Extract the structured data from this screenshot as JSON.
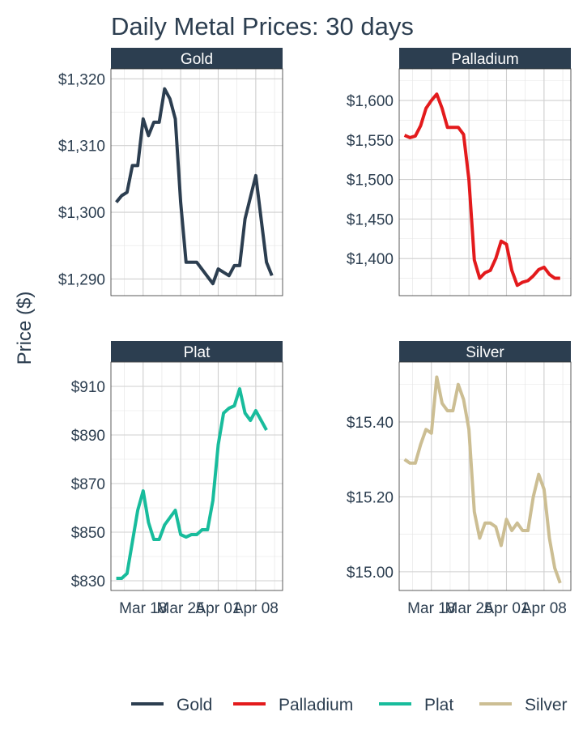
{
  "chart_data": {
    "type": "line",
    "title": "Daily Metal Prices: 30 days",
    "ylabel": "Price ($)",
    "xlabel": "",
    "x_dates": [
      "2019-03-13",
      "2019-03-14",
      "2019-03-15",
      "2019-03-18",
      "2019-03-19",
      "2019-03-20",
      "2019-03-21",
      "2019-03-22",
      "2019-03-25",
      "2019-03-26",
      "2019-03-27",
      "2019-03-28",
      "2019-03-29",
      "2019-04-01",
      "2019-04-02",
      "2019-04-03",
      "2019-04-04",
      "2019-04-05",
      "2019-04-08",
      "2019-04-09",
      "2019-04-10",
      "2019-04-11",
      "2019-04-12"
    ],
    "x_ticks": [
      {
        "date": "2019-03-18",
        "label": "Mar 18"
      },
      {
        "date": "2019-03-25",
        "label": "Mar 25"
      },
      {
        "date": "2019-04-01",
        "label": "Apr 01"
      },
      {
        "date": "2019-04-08",
        "label": "Apr 08"
      }
    ],
    "x_range": [
      "2019-03-12",
      "2019-04-13"
    ],
    "panels": [
      {
        "name": "Gold",
        "color": "#2c3e50",
        "ylim": [
          1287.5,
          1321.5
        ],
        "y_ticks": [
          1290,
          1300,
          1310,
          1320
        ],
        "y_tick_labels": [
          "$1,290",
          "$1,300",
          "$1,310",
          "$1,320"
        ],
        "points": [
          [
            "2019-03-13",
            1301.5
          ],
          [
            "2019-03-14",
            1302.5
          ],
          [
            "2019-03-15",
            1303.0
          ],
          [
            "2019-03-16",
            1307.0
          ],
          [
            "2019-03-17",
            1307.0
          ],
          [
            "2019-03-18",
            1314.0
          ],
          [
            "2019-03-19",
            1311.5
          ],
          [
            "2019-03-20",
            1313.5
          ],
          [
            "2019-03-21",
            1313.5
          ],
          [
            "2019-03-22",
            1318.5
          ],
          [
            "2019-03-23",
            1317.0
          ],
          [
            "2019-03-24",
            1314.0
          ],
          [
            "2019-03-25",
            1301.5
          ],
          [
            "2019-03-26",
            1292.5
          ],
          [
            "2019-03-28",
            1292.5
          ],
          [
            "2019-03-31",
            1289.3
          ],
          [
            "2019-04-01",
            1291.5
          ],
          [
            "2019-04-03",
            1290.5
          ],
          [
            "2019-04-04",
            1292.0
          ],
          [
            "2019-04-05",
            1292.0
          ],
          [
            "2019-04-06",
            1299.0
          ],
          [
            "2019-04-08",
            1305.5
          ],
          [
            "2019-04-10",
            1292.5
          ],
          [
            "2019-04-11",
            1290.5
          ]
        ]
      },
      {
        "name": "Palladium",
        "color": "#e31a1c",
        "ylim": [
          1353,
          1640
        ],
        "y_ticks": [
          1400,
          1450,
          1500,
          1550,
          1600
        ],
        "y_tick_labels": [
          "$1,400",
          "$1,450",
          "$1,500",
          "$1,550",
          "$1,600"
        ],
        "points": [
          [
            "2019-03-13",
            1556
          ],
          [
            "2019-03-14",
            1553
          ],
          [
            "2019-03-15",
            1555
          ],
          [
            "2019-03-16",
            1568
          ],
          [
            "2019-03-17",
            1590
          ],
          [
            "2019-03-18",
            1600
          ],
          [
            "2019-03-19",
            1608
          ],
          [
            "2019-03-20",
            1590
          ],
          [
            "2019-03-21",
            1566
          ],
          [
            "2019-03-22",
            1566
          ],
          [
            "2019-03-23",
            1566
          ],
          [
            "2019-03-24",
            1557
          ],
          [
            "2019-03-25",
            1500
          ],
          [
            "2019-03-26",
            1398
          ],
          [
            "2019-03-27",
            1375
          ],
          [
            "2019-03-28",
            1382
          ],
          [
            "2019-03-29",
            1385
          ],
          [
            "2019-03-30",
            1400
          ],
          [
            "2019-03-31",
            1422
          ],
          [
            "2019-04-01",
            1418
          ],
          [
            "2019-04-02",
            1385
          ],
          [
            "2019-04-03",
            1366
          ],
          [
            "2019-04-04",
            1370
          ],
          [
            "2019-04-05",
            1372
          ],
          [
            "2019-04-06",
            1378
          ],
          [
            "2019-04-07",
            1386
          ],
          [
            "2019-04-08",
            1389
          ],
          [
            "2019-04-09",
            1380
          ],
          [
            "2019-04-10",
            1375
          ],
          [
            "2019-04-11",
            1375
          ]
        ]
      },
      {
        "name": "Plat",
        "color": "#18bc9c",
        "ylim": [
          826,
          920
        ],
        "y_ticks": [
          830,
          850,
          870,
          890,
          910
        ],
        "y_tick_labels": [
          "$830",
          "$850",
          "$870",
          "$890",
          "$910"
        ],
        "points": [
          [
            "2019-03-13",
            831
          ],
          [
            "2019-03-14",
            831
          ],
          [
            "2019-03-15",
            833
          ],
          [
            "2019-03-16",
            846
          ],
          [
            "2019-03-17",
            859
          ],
          [
            "2019-03-18",
            867
          ],
          [
            "2019-03-19",
            854
          ],
          [
            "2019-03-20",
            847
          ],
          [
            "2019-03-21",
            847
          ],
          [
            "2019-03-22",
            853
          ],
          [
            "2019-03-23",
            856
          ],
          [
            "2019-03-24",
            859
          ],
          [
            "2019-03-25",
            849
          ],
          [
            "2019-03-26",
            848
          ],
          [
            "2019-03-27",
            849
          ],
          [
            "2019-03-28",
            849
          ],
          [
            "2019-03-29",
            851
          ],
          [
            "2019-03-30",
            851
          ],
          [
            "2019-03-31",
            863
          ],
          [
            "2019-04-01",
            886
          ],
          [
            "2019-04-02",
            899
          ],
          [
            "2019-04-03",
            901
          ],
          [
            "2019-04-04",
            902
          ],
          [
            "2019-04-05",
            909
          ],
          [
            "2019-04-06",
            899
          ],
          [
            "2019-04-07",
            896
          ],
          [
            "2019-04-08",
            900
          ],
          [
            "2019-04-10",
            892
          ]
        ]
      },
      {
        "name": "Silver",
        "color": "#ccbe93",
        "ylim": [
          14.95,
          15.56
        ],
        "y_ticks": [
          15.0,
          15.2,
          15.4
        ],
        "y_tick_labels": [
          "$15.00",
          "$15.20",
          "$15.40"
        ],
        "points": [
          [
            "2019-03-13",
            15.3
          ],
          [
            "2019-03-14",
            15.29
          ],
          [
            "2019-03-15",
            15.29
          ],
          [
            "2019-03-16",
            15.34
          ],
          [
            "2019-03-17",
            15.38
          ],
          [
            "2019-03-18",
            15.37
          ],
          [
            "2019-03-19",
            15.52
          ],
          [
            "2019-03-20",
            15.45
          ],
          [
            "2019-03-21",
            15.43
          ],
          [
            "2019-03-22",
            15.43
          ],
          [
            "2019-03-23",
            15.5
          ],
          [
            "2019-03-24",
            15.46
          ],
          [
            "2019-03-25",
            15.38
          ],
          [
            "2019-03-26",
            15.16
          ],
          [
            "2019-03-27",
            15.09
          ],
          [
            "2019-03-28",
            15.13
          ],
          [
            "2019-03-29",
            15.13
          ],
          [
            "2019-03-30",
            15.12
          ],
          [
            "2019-03-31",
            15.07
          ],
          [
            "2019-04-01",
            15.14
          ],
          [
            "2019-04-02",
            15.11
          ],
          [
            "2019-04-03",
            15.13
          ],
          [
            "2019-04-04",
            15.11
          ],
          [
            "2019-04-05",
            15.11
          ],
          [
            "2019-04-06",
            15.2
          ],
          [
            "2019-04-07",
            15.26
          ],
          [
            "2019-04-08",
            15.22
          ],
          [
            "2019-04-09",
            15.09
          ],
          [
            "2019-04-10",
            15.01
          ],
          [
            "2019-04-11",
            14.97
          ]
        ]
      }
    ],
    "legend": {
      "position": "bottom",
      "items": [
        {
          "label": "Gold",
          "color": "#2c3e50"
        },
        {
          "label": "Palladium",
          "color": "#e31a1c"
        },
        {
          "label": "Plat",
          "color": "#18bc9c"
        },
        {
          "label": "Silver",
          "color": "#ccbe93"
        }
      ]
    },
    "strip_color": "#2c3e50",
    "grid": true
  }
}
